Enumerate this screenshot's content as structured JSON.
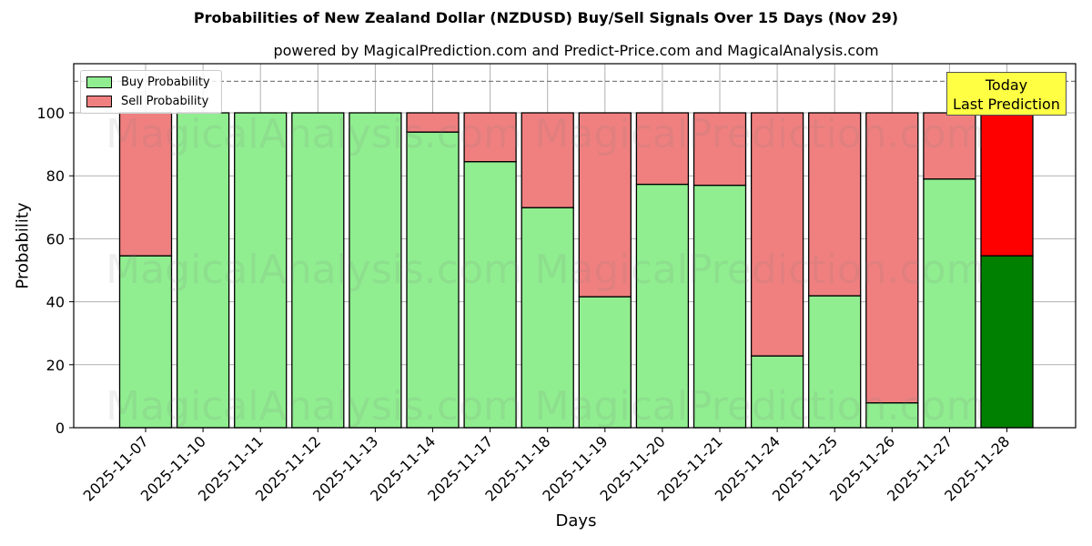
{
  "title": "Probabilities of New Zealand Dollar (NZDUSD) Buy/Sell Signals Over 15 Days (Nov 29)",
  "subtitle": "powered by MagicalPrediction.com and Predict-Price.com and MagicalAnalysis.com",
  "legend": {
    "buy_label": "Buy Probability",
    "sell_label": "Sell Probability"
  },
  "annotation": {
    "line1": "Today",
    "line2": "Last Prediction"
  },
  "watermarks": [
    "MagicalAnalysis.com",
    "MagicalPrediction.com"
  ],
  "colors": {
    "buy": "#90ee90",
    "sell": "#f08080",
    "today_buy": "#008000",
    "today_sell": "#ff0000",
    "annotation_bg": "#ffff44"
  },
  "chart_data": {
    "type": "bar",
    "stacked": true,
    "title": "Probabilities of New Zealand Dollar (NZDUSD) Buy/Sell Signals Over 15 Days (Nov 29)",
    "subtitle": "powered by MagicalPrediction.com and Predict-Price.com and MagicalAnalysis.com",
    "xlabel": "Days",
    "ylabel": "Probability",
    "ylim": [
      0,
      115
    ],
    "yticks": [
      0,
      20,
      40,
      60,
      80,
      100
    ],
    "grid": true,
    "legend_position": "upper left",
    "reference_line": {
      "y": 110,
      "style": "dashed",
      "color": "#808080"
    },
    "categories": [
      "2025-11-07",
      "2025-11-10",
      "2025-11-11",
      "2025-11-12",
      "2025-11-13",
      "2025-11-14",
      "2025-11-17",
      "2025-11-18",
      "2025-11-19",
      "2025-11-20",
      "2025-11-21",
      "2025-11-24",
      "2025-11-25",
      "2025-11-26",
      "2025-11-27",
      "2025-11-28"
    ],
    "series": [
      {
        "name": "Buy Probability",
        "values": [
          54.6,
          100,
          100,
          100,
          100,
          93.9,
          84.5,
          69.9,
          41.6,
          77.3,
          77.0,
          22.8,
          41.9,
          7.9,
          79.0,
          54.6
        ]
      },
      {
        "name": "Sell Probability",
        "values": [
          45.4,
          0,
          0,
          0,
          0,
          6.1,
          15.5,
          30.1,
          58.4,
          22.7,
          23.0,
          77.2,
          58.1,
          92.1,
          21.0,
          45.4
        ]
      }
    ],
    "annotations": [
      {
        "text": "Today\nLast Prediction",
        "x": "2025-11-28"
      }
    ]
  }
}
